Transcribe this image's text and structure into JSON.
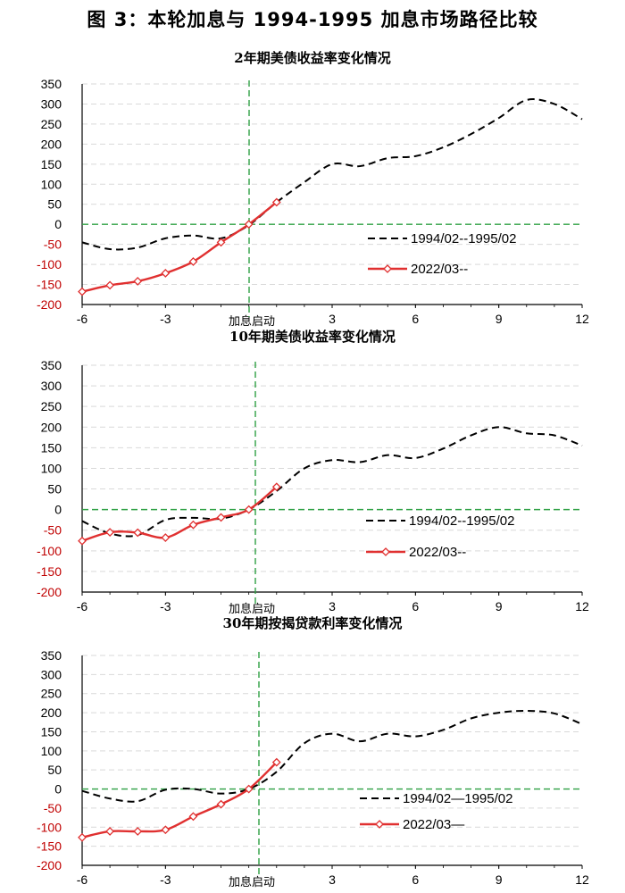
{
  "figure_title": "图 3：本轮加息与 1994-1995 加息市场路径比较",
  "colors": {
    "s1994": "#000000",
    "s2022": "#e03030",
    "guide": "#2ea043",
    "grid": "#d9d9d9",
    "axis": "#000000",
    "negative_tick": "#c00000"
  },
  "chart_data": [
    {
      "type": "line",
      "title": "2年期美债收益率变化情况",
      "xlabel": "加息启动",
      "ylabel": "",
      "x_ticks": [
        -6,
        -3,
        3,
        6,
        9,
        12
      ],
      "xlim": [
        -6,
        12
      ],
      "ylim": [
        -200,
        350
      ],
      "y_ticks": [
        -200,
        -150,
        -100,
        -50,
        0,
        50,
        100,
        150,
        200,
        250,
        300,
        350
      ],
      "vline_x": 0,
      "hline_y": 0,
      "series": [
        {
          "name": "1994/02--1995/02",
          "style": "dashed",
          "x": [
            -6,
            -5,
            -4,
            -3,
            -2,
            -1,
            0,
            1,
            2,
            3,
            4,
            5,
            6,
            7,
            8,
            9,
            10,
            11,
            12
          ],
          "values": [
            -45,
            -62,
            -58,
            -35,
            -28,
            -35,
            -2,
            55,
            105,
            150,
            145,
            165,
            170,
            192,
            225,
            265,
            310,
            300,
            262
          ]
        },
        {
          "name": "2022/03--",
          "style": "solid-diamond",
          "x": [
            -6,
            -5,
            -4,
            -3,
            -2,
            -1,
            0,
            1
          ],
          "values": [
            -168,
            -152,
            -142,
            -122,
            -93,
            -45,
            0,
            55
          ]
        }
      ]
    },
    {
      "type": "line",
      "title": "10年期美债收益率变化情况",
      "xlabel": "加息启动",
      "ylabel": "",
      "x_ticks": [
        -6,
        -3,
        3,
        6,
        9,
        12
      ],
      "xlim": [
        -6,
        12
      ],
      "ylim": [
        -200,
        350
      ],
      "y_ticks": [
        -200,
        -150,
        -100,
        -50,
        0,
        50,
        100,
        150,
        200,
        250,
        300,
        350
      ],
      "vline_x": 0,
      "hline_y": 0,
      "series": [
        {
          "name": "1994/02--1995/02",
          "style": "dashed",
          "x": [
            -6,
            -5,
            -4,
            -3,
            -2,
            -1,
            0,
            1,
            2,
            3,
            4,
            5,
            6,
            7,
            8,
            9,
            10,
            11,
            12
          ],
          "values": [
            -28,
            -58,
            -62,
            -25,
            -20,
            -22,
            0,
            45,
            100,
            120,
            115,
            132,
            125,
            148,
            180,
            200,
            185,
            180,
            155
          ]
        },
        {
          "name": "2022/03--",
          "style": "solid-diamond",
          "x": [
            -6,
            -5,
            -4,
            -3,
            -2,
            -1,
            0,
            1
          ],
          "values": [
            -76,
            -55,
            -56,
            -68,
            -37,
            -19,
            0,
            55
          ]
        }
      ]
    },
    {
      "type": "line",
      "title": "30年期按揭贷款利率变化情况",
      "xlabel": "加息启动",
      "ylabel": "",
      "x_ticks": [
        -6,
        -3,
        3,
        6,
        9,
        12
      ],
      "xlim": [
        -6,
        12
      ],
      "ylim": [
        -200,
        350
      ],
      "y_ticks": [
        -200,
        -150,
        -100,
        -50,
        0,
        50,
        100,
        150,
        200,
        250,
        300,
        350
      ],
      "vline_x": 0,
      "hline_y": 0,
      "series": [
        {
          "name": "1994/02—1995/02",
          "style": "dashed",
          "x": [
            -6,
            -5,
            -4,
            -3,
            -2,
            -1,
            0,
            1,
            2,
            3,
            4,
            5,
            6,
            7,
            8,
            9,
            10,
            11,
            12
          ],
          "values": [
            -5,
            -25,
            -32,
            -2,
            0,
            -12,
            0,
            45,
            120,
            145,
            125,
            145,
            138,
            155,
            185,
            200,
            205,
            198,
            170
          ]
        },
        {
          "name": "2022/03—",
          "style": "solid-diamond",
          "x": [
            -6,
            -5,
            -4,
            -3,
            -2,
            -1,
            0,
            1
          ],
          "values": [
            -127,
            -111,
            -111,
            -107,
            -72,
            -40,
            0,
            70
          ]
        }
      ]
    }
  ]
}
